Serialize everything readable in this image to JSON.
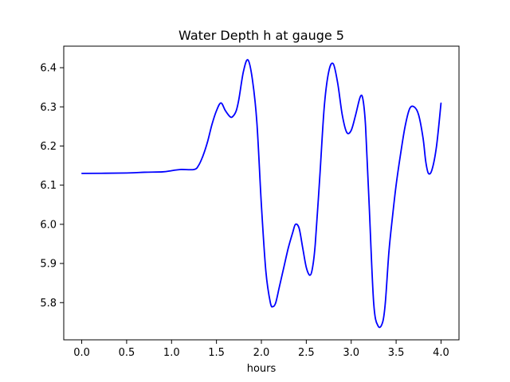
{
  "chart_data": {
    "type": "line",
    "title": "Water Depth h at gauge 5",
    "xlabel": "hours",
    "ylabel": "",
    "xlim": [
      -0.2,
      4.2
    ],
    "ylim": [
      5.705,
      6.455
    ],
    "xticks": [
      "0.0",
      "0.5",
      "1.0",
      "1.5",
      "2.0",
      "2.5",
      "3.0",
      "3.5",
      "4.0"
    ],
    "yticks": [
      "5.8",
      "5.9",
      "6.0",
      "6.1",
      "6.2",
      "6.3",
      "6.4"
    ],
    "grid": false,
    "series": [
      {
        "color": "#0000ff",
        "x": [
          0.0,
          0.5,
          0.7,
          0.9,
          1.0,
          1.1,
          1.25,
          1.3,
          1.35,
          1.4,
          1.45,
          1.5,
          1.55,
          1.6,
          1.65,
          1.68,
          1.72,
          1.75,
          1.8,
          1.85,
          1.9,
          1.95,
          2.0,
          2.05,
          2.1,
          2.13,
          2.16,
          2.2,
          2.25,
          2.3,
          2.35,
          2.38,
          2.42,
          2.46,
          2.5,
          2.54,
          2.57,
          2.6,
          2.65,
          2.7,
          2.75,
          2.8,
          2.85,
          2.9,
          2.95,
          3.0,
          3.05,
          3.1,
          3.13,
          3.16,
          3.2,
          3.25,
          3.3,
          3.35,
          3.38,
          3.42,
          3.46,
          3.5,
          3.55,
          3.6,
          3.65,
          3.7,
          3.75,
          3.8,
          3.83,
          3.86,
          3.9,
          3.95,
          4.0
        ],
        "y": [
          6.13,
          6.131,
          6.133,
          6.134,
          6.137,
          6.14,
          6.14,
          6.15,
          6.175,
          6.21,
          6.255,
          6.29,
          6.31,
          6.29,
          6.275,
          6.275,
          6.29,
          6.32,
          6.39,
          6.42,
          6.37,
          6.26,
          6.05,
          5.88,
          5.8,
          5.79,
          5.8,
          5.84,
          5.89,
          5.94,
          5.98,
          6.0,
          5.99,
          5.94,
          5.89,
          5.87,
          5.89,
          5.95,
          6.12,
          6.3,
          6.39,
          6.41,
          6.36,
          6.28,
          6.235,
          6.24,
          6.28,
          6.325,
          6.32,
          6.25,
          6.05,
          5.8,
          5.74,
          5.75,
          5.8,
          5.93,
          6.02,
          6.1,
          6.18,
          6.25,
          6.295,
          6.3,
          6.28,
          6.22,
          6.16,
          6.13,
          6.14,
          6.2,
          6.31
        ]
      }
    ]
  }
}
